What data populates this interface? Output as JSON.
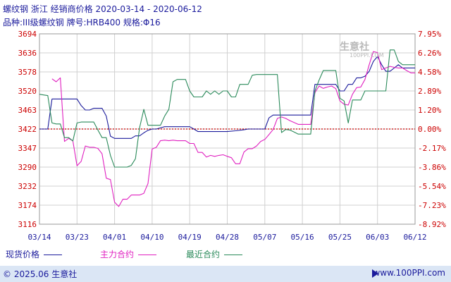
{
  "header": {
    "title": "螺纹钢 浙江 经销商价格 2020-03-14 - 2020-06-12",
    "subtitle": "品种:III级螺纹钢 牌号:HRB400 规格:Φ16"
  },
  "watermark": {
    "text": "生意社",
    "url": "100PPI.COM"
  },
  "legend": {
    "items": [
      {
        "label": "现货价格",
        "color": "#1c1c9c"
      },
      {
        "label": "主力合约",
        "color": "#e020c0"
      },
      {
        "label": "最近合约",
        "color": "#2a8a5a"
      }
    ]
  },
  "footer": {
    "copyright": "© 2025.06 生意社",
    "url": "www.100PPI.com"
  },
  "colors": {
    "left_axis": "#cc0000",
    "right_axis": "#cc0000",
    "x_axis": "#1a1a9c",
    "baseline": "#cc0000",
    "grid": "#d0d0d0"
  },
  "chart_data": {
    "type": "line",
    "title": "螺纹钢 浙江 经销商价格 2020-03-14 - 2020-06-12",
    "subtitle": "品种:III级螺纹钢 牌号:HRB400 规格:Φ16",
    "x_ticks": [
      "03/14",
      "03/23",
      "04/01",
      "04/10",
      "04/19",
      "04/28",
      "05/07",
      "05/16",
      "05/25",
      "06/03",
      "06/12"
    ],
    "x_start": "03/14",
    "x_end": "06/12",
    "y_left_ticks": [
      "3694",
      "3636",
      "3578",
      "3520",
      "3463",
      "3422",
      "3347",
      "3290",
      "3232",
      "3174",
      "3116"
    ],
    "y_right_ticks": [
      "7.95%",
      "6.26%",
      "4.58%",
      "2.89%",
      "1.20%",
      "0.00%",
      "-2.17%",
      "-3.86%",
      "-5.54%",
      "-7.23%",
      "-8.92%"
    ],
    "ylim_left": [
      3116,
      3694
    ],
    "ylim_right": [
      -8.92,
      7.95
    ],
    "baseline": 3422,
    "grid": true,
    "legend_position": "bottom",
    "series": [
      {
        "name": "现货价格",
        "color": "#1c1c9c",
        "points": [
          [
            "03/14",
            3422
          ],
          [
            "03/15",
            3422
          ],
          [
            "03/16",
            3422
          ],
          [
            "03/17",
            3496
          ],
          [
            "03/18",
            3496
          ],
          [
            "03/21",
            3496
          ],
          [
            "03/22",
            3496
          ],
          [
            "03/23",
            3496
          ],
          [
            "03/24",
            3476
          ],
          [
            "03/25",
            3463
          ],
          [
            "03/26",
            3463
          ],
          [
            "03/27",
            3468
          ],
          [
            "03/28",
            3468
          ],
          [
            "03/29",
            3468
          ],
          [
            "03/30",
            3450
          ],
          [
            "03/31",
            3394
          ],
          [
            "04/01",
            3385
          ],
          [
            "04/02",
            3385
          ],
          [
            "04/03",
            3385
          ],
          [
            "04/04",
            3385
          ],
          [
            "04/05",
            3385
          ],
          [
            "04/06",
            3395
          ],
          [
            "04/07",
            3395
          ],
          [
            "04/08",
            3407
          ],
          [
            "04/09",
            3417
          ],
          [
            "04/10",
            3422
          ],
          [
            "04/11",
            3422
          ],
          [
            "04/13",
            3427
          ],
          [
            "04/15",
            3427
          ],
          [
            "04/17",
            3427
          ],
          [
            "04/19",
            3427
          ],
          [
            "04/20",
            3422
          ],
          [
            "04/21",
            3412
          ],
          [
            "04/22",
            3412
          ],
          [
            "04/24",
            3412
          ],
          [
            "04/26",
            3412
          ],
          [
            "04/28",
            3412
          ],
          [
            "04/30",
            3415
          ],
          [
            "05/02",
            3419
          ],
          [
            "05/03",
            3422
          ],
          [
            "05/05",
            3422
          ],
          [
            "05/06",
            3422
          ],
          [
            "05/07",
            3422
          ],
          [
            "05/08",
            3446
          ],
          [
            "05/09",
            3452
          ],
          [
            "05/10",
            3452
          ],
          [
            "05/11",
            3452
          ],
          [
            "05/12",
            3452
          ],
          [
            "05/13",
            3452
          ],
          [
            "05/14",
            3452
          ],
          [
            "05/15",
            3452
          ],
          [
            "05/16",
            3452
          ],
          [
            "05/17",
            3452
          ],
          [
            "05/18",
            3452
          ],
          [
            "05/19",
            3540
          ],
          [
            "05/20",
            3540
          ],
          [
            "05/21",
            3540
          ],
          [
            "05/22",
            3540
          ],
          [
            "05/23",
            3540
          ],
          [
            "05/24",
            3540
          ],
          [
            "05/25",
            3520
          ],
          [
            "05/26",
            3520
          ],
          [
            "05/27",
            3540
          ],
          [
            "05/28",
            3540
          ],
          [
            "05/29",
            3560
          ],
          [
            "05/30",
            3560
          ],
          [
            "05/31",
            3565
          ],
          [
            "06/01",
            3580
          ],
          [
            "06/02",
            3610
          ],
          [
            "06/03",
            3625
          ],
          [
            "06/04",
            3600
          ],
          [
            "06/05",
            3580
          ],
          [
            "06/06",
            3580
          ],
          [
            "06/07",
            3590
          ],
          [
            "06/08",
            3600
          ],
          [
            "06/09",
            3590
          ],
          [
            "06/10",
            3590
          ],
          [
            "06/11",
            3590
          ],
          [
            "06/12",
            3590
          ]
        ]
      },
      {
        "name": "主力合约",
        "color": "#e020c0",
        "points": [
          [
            "03/17",
            3557
          ],
          [
            "03/18",
            3548
          ],
          [
            "03/19",
            3560
          ],
          [
            "03/20",
            3373
          ],
          [
            "03/21",
            3385
          ],
          [
            "03/22",
            3375
          ],
          [
            "03/23",
            3294
          ],
          [
            "03/24",
            3307
          ],
          [
            "03/25",
            3355
          ],
          [
            "03/26",
            3350
          ],
          [
            "03/27",
            3350
          ],
          [
            "03/28",
            3346
          ],
          [
            "03/29",
            3330
          ],
          [
            "03/30",
            3256
          ],
          [
            "03/31",
            3252
          ],
          [
            "04/01",
            3183
          ],
          [
            "04/02",
            3170
          ],
          [
            "04/03",
            3192
          ],
          [
            "04/04",
            3192
          ],
          [
            "04/05",
            3205
          ],
          [
            "04/06",
            3205
          ],
          [
            "04/07",
            3205
          ],
          [
            "04/08",
            3210
          ],
          [
            "04/09",
            3240
          ],
          [
            "04/10",
            3344
          ],
          [
            "04/11",
            3350
          ],
          [
            "04/12",
            3376
          ],
          [
            "04/13",
            3378
          ],
          [
            "04/14",
            3376
          ],
          [
            "04/15",
            3378
          ],
          [
            "04/16",
            3376
          ],
          [
            "04/17",
            3376
          ],
          [
            "04/18",
            3376
          ],
          [
            "04/19",
            3365
          ],
          [
            "04/20",
            3365
          ],
          [
            "04/21",
            3334
          ],
          [
            "04/22",
            3334
          ],
          [
            "04/23",
            3320
          ],
          [
            "04/24",
            3325
          ],
          [
            "04/25",
            3322
          ],
          [
            "04/26",
            3325
          ],
          [
            "04/27",
            3327
          ],
          [
            "04/28",
            3322
          ],
          [
            "04/29",
            3318
          ],
          [
            "04/30",
            3300
          ],
          [
            "05/01",
            3300
          ],
          [
            "05/02",
            3335
          ],
          [
            "05/03",
            3345
          ],
          [
            "05/04",
            3345
          ],
          [
            "05/05",
            3355
          ],
          [
            "05/06",
            3373
          ],
          [
            "05/07",
            3381
          ],
          [
            "05/08",
            3400
          ],
          [
            "05/09",
            3420
          ],
          [
            "05/10",
            3445
          ],
          [
            "05/11",
            3448
          ],
          [
            "05/12",
            3445
          ],
          [
            "05/13",
            3440
          ],
          [
            "05/14",
            3436
          ],
          [
            "05/15",
            3432
          ],
          [
            "05/16",
            3432
          ],
          [
            "05/17",
            3432
          ],
          [
            "05/18",
            3432
          ],
          [
            "05/19",
            3515
          ],
          [
            "05/20",
            3535
          ],
          [
            "05/21",
            3528
          ],
          [
            "05/22",
            3532
          ],
          [
            "05/23",
            3535
          ],
          [
            "05/24",
            3527
          ],
          [
            "05/25",
            3490
          ],
          [
            "05/26",
            3480
          ],
          [
            "05/27",
            3478
          ],
          [
            "05/28",
            3510
          ],
          [
            "05/29",
            3530
          ],
          [
            "05/30",
            3532
          ],
          [
            "05/31",
            3555
          ],
          [
            "06/01",
            3600
          ],
          [
            "06/02",
            3640
          ],
          [
            "06/03",
            3637
          ],
          [
            "06/04",
            3585
          ],
          [
            "06/05",
            3590
          ],
          [
            "06/06",
            3595
          ],
          [
            "06/07",
            3592
          ],
          [
            "06/08",
            3590
          ],
          [
            "06/09",
            3590
          ],
          [
            "06/10",
            3582
          ],
          [
            "06/11",
            3575
          ],
          [
            "06/12",
            3575
          ]
        ]
      },
      {
        "name": "最近合约",
        "color": "#2a8a5a",
        "points": [
          [
            "03/14",
            3510
          ],
          [
            "03/15",
            3508
          ],
          [
            "03/16",
            3506
          ],
          [
            "03/17",
            3435
          ],
          [
            "03/18",
            3433
          ],
          [
            "03/19",
            3433
          ],
          [
            "03/20",
            3388
          ],
          [
            "03/21",
            3388
          ],
          [
            "03/22",
            3375
          ],
          [
            "03/23",
            3435
          ],
          [
            "03/24",
            3437
          ],
          [
            "03/25",
            3437
          ],
          [
            "03/26",
            3437
          ],
          [
            "03/27",
            3437
          ],
          [
            "03/28",
            3418
          ],
          [
            "03/29",
            3388
          ],
          [
            "03/30",
            3388
          ],
          [
            "03/31",
            3325
          ],
          [
            "04/01",
            3290
          ],
          [
            "04/02",
            3290
          ],
          [
            "04/03",
            3290
          ],
          [
            "04/04",
            3290
          ],
          [
            "04/05",
            3295
          ],
          [
            "04/06",
            3315
          ],
          [
            "04/07",
            3425
          ],
          [
            "04/08",
            3465
          ],
          [
            "04/09",
            3430
          ],
          [
            "04/10",
            3430
          ],
          [
            "04/11",
            3430
          ],
          [
            "04/12",
            3430
          ],
          [
            "04/13",
            3450
          ],
          [
            "04/14",
            3465
          ],
          [
            "04/15",
            3548
          ],
          [
            "04/16",
            3555
          ],
          [
            "04/17",
            3555
          ],
          [
            "04/18",
            3555
          ],
          [
            "04/19",
            3520
          ],
          [
            "04/20",
            3502
          ],
          [
            "04/21",
            3502
          ],
          [
            "04/22",
            3502
          ],
          [
            "04/23",
            3520
          ],
          [
            "04/24",
            3510
          ],
          [
            "04/25",
            3520
          ],
          [
            "04/26",
            3510
          ],
          [
            "04/27",
            3520
          ],
          [
            "04/28",
            3520
          ],
          [
            "04/29",
            3502
          ],
          [
            "04/30",
            3502
          ],
          [
            "05/01",
            3540
          ],
          [
            "05/02",
            3540
          ],
          [
            "05/03",
            3540
          ],
          [
            "05/04",
            3568
          ],
          [
            "05/05",
            3570
          ],
          [
            "05/06",
            3570
          ],
          [
            "05/07",
            3570
          ],
          [
            "05/08",
            3570
          ],
          [
            "05/09",
            3570
          ],
          [
            "05/10",
            3570
          ],
          [
            "05/11",
            3408
          ],
          [
            "05/12",
            3420
          ],
          [
            "05/13",
            3418
          ],
          [
            "05/14",
            3410
          ],
          [
            "05/15",
            3402
          ],
          [
            "05/16",
            3402
          ],
          [
            "05/17",
            3402
          ],
          [
            "05/18",
            3402
          ],
          [
            "05/19",
            3520
          ],
          [
            "05/20",
            3553
          ],
          [
            "05/21",
            3582
          ],
          [
            "05/22",
            3582
          ],
          [
            "05/23",
            3582
          ],
          [
            "05/24",
            3582
          ],
          [
            "05/25",
            3498
          ],
          [
            "05/26",
            3490
          ],
          [
            "05/27",
            3435
          ],
          [
            "05/28",
            3493
          ],
          [
            "05/29",
            3493
          ],
          [
            "05/30",
            3493
          ],
          [
            "05/31",
            3520
          ],
          [
            "06/01",
            3520
          ],
          [
            "06/02",
            3520
          ],
          [
            "06/03",
            3520
          ],
          [
            "06/04",
            3520
          ],
          [
            "06/05",
            3520
          ],
          [
            "06/06",
            3645
          ],
          [
            "06/07",
            3645
          ],
          [
            "06/08",
            3610
          ],
          [
            "06/09",
            3600
          ],
          [
            "06/10",
            3600
          ],
          [
            "06/11",
            3600
          ],
          [
            "06/12",
            3600
          ]
        ]
      }
    ]
  }
}
